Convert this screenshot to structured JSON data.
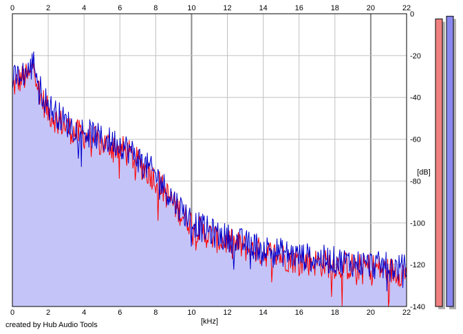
{
  "app": {
    "credit": "created by Hub Audio Tools"
  },
  "colors": {
    "background": "#ffffff",
    "plot_background": "#ffffff",
    "grid": "#c0c0c0",
    "grid_major": "#8a8a8a",
    "left_channel": "#ff0000",
    "right_channel": "#0000cc",
    "fill": "#c4c4f8",
    "meter_left": "#f08080",
    "meter_right": "#8888f0",
    "meter_shadow": "#b0b0b0"
  },
  "chart_data": {
    "type": "line",
    "xlabel": "[kHz]",
    "ylabel": "[dB]",
    "xlim": [
      0,
      22
    ],
    "ylim": [
      -140,
      0
    ],
    "x_ticks": [
      "0",
      "2",
      "4",
      "6",
      "8",
      "10",
      "12",
      "14",
      "16",
      "18",
      "20",
      "22"
    ],
    "y_ticks": [
      "0",
      "-20",
      "-40",
      "-60",
      "-80",
      "-100",
      "-120",
      "-140"
    ],
    "grid": true,
    "x_unit": "kHz",
    "y_unit": "dB",
    "x": [
      0,
      0.5,
      1,
      1.2,
      1.5,
      2,
      2.5,
      3,
      3.5,
      4,
      4.5,
      5,
      5.5,
      6,
      6.5,
      7,
      7.5,
      8,
      8.5,
      9,
      9.5,
      10,
      10.5,
      11,
      11.5,
      12,
      13,
      14,
      15,
      16,
      17,
      18,
      19,
      20,
      21,
      22
    ],
    "series": [
      {
        "values": [
          -35,
          -31,
          -30,
          -22,
          -38,
          -47,
          -51,
          -54,
          -57,
          -58,
          -60,
          -62,
          -63,
          -64,
          -67,
          -71,
          -75,
          -79,
          -85,
          -91,
          -96,
          -100,
          -104,
          -106,
          -108,
          -109,
          -112,
          -114,
          -116,
          -118,
          -119,
          -120,
          -121,
          -121,
          -123,
          -124
        ]
      },
      {
        "values": [
          -32,
          -29,
          -27,
          -22,
          -35,
          -44,
          -48,
          -52,
          -55,
          -56,
          -58,
          -60,
          -61,
          -62,
          -65,
          -69,
          -73,
          -77,
          -83,
          -89,
          -94,
          -99,
          -102,
          -104,
          -106,
          -107,
          -110,
          -112,
          -114,
          -116,
          -117,
          -118,
          -119,
          -120,
          -121,
          -122
        ]
      }
    ],
    "meters": [
      {
        "value": -2.5
      },
      {
        "value": -1.2
      }
    ]
  }
}
